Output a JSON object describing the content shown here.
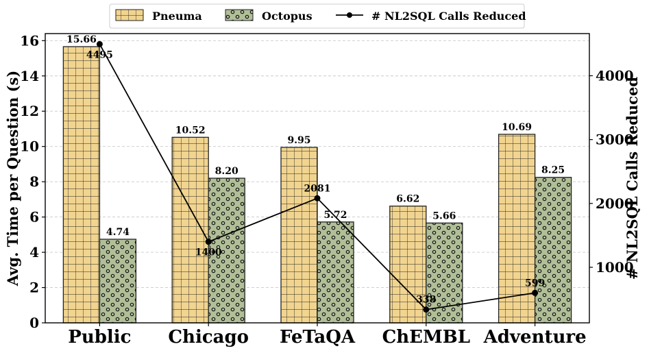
{
  "chart_data": {
    "type": "bar",
    "categories": [
      "Public",
      "Chicago",
      "FeTaQA",
      "ChEMBL",
      "Adventure"
    ],
    "series": [
      {
        "name": "Pneuma",
        "values": [
          15.66,
          10.52,
          9.95,
          6.62,
          10.69
        ],
        "labels": [
          "15.66",
          "10.52",
          "9.95",
          "6.62",
          "10.69"
        ],
        "color": "#f1d48f",
        "pattern": "grid"
      },
      {
        "name": "Octopus",
        "values": [
          4.74,
          8.2,
          5.72,
          5.66,
          8.25
        ],
        "labels": [
          "4.74",
          "8.20",
          "5.72",
          "5.66",
          "8.25"
        ],
        "color": "#b1bf98",
        "pattern": "circles"
      }
    ],
    "line_series": {
      "name": "# NL2SQL Calls Reduced",
      "values": [
        4495,
        1400,
        2081,
        338,
        599
      ],
      "labels": [
        "4495",
        "1400",
        "2081",
        "338",
        "599"
      ],
      "color": "#000000"
    },
    "ylabel": "Avg. Time per Question (s)",
    "ylabel_right": "# NL2SQL Calls Reduced",
    "xlabel": "",
    "ylim": [
      0,
      16.4
    ],
    "ylim_right": [
      130,
      4660
    ],
    "yticks": [
      0,
      2,
      4,
      6,
      8,
      10,
      12,
      14,
      16
    ],
    "yticks_right": [
      1000,
      2000,
      3000,
      4000
    ],
    "grid": true,
    "legend_position": "top-center"
  }
}
